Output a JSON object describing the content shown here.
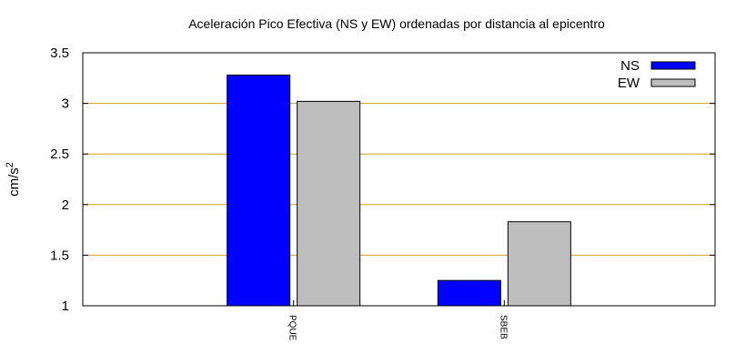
{
  "chart_data": {
    "type": "bar",
    "title": "Aceleración Pico Efectiva (NS y EW) ordenadas por distancia al epicentro",
    "ylabel_base": "cm/s",
    "ylabel_sup": "2",
    "categories": [
      "PQUE",
      "SBEB"
    ],
    "series": [
      {
        "name": "NS",
        "color": "#0000ff",
        "values": [
          3.28,
          1.25
        ]
      },
      {
        "name": "EW",
        "color": "#bebebe",
        "values": [
          3.02,
          1.83
        ]
      }
    ],
    "ylim": [
      1,
      3.5
    ],
    "yticks": [
      "1",
      "1.5",
      "2",
      "2.5",
      "3",
      "3.5"
    ],
    "grid": true,
    "grid_color": "#d4a017",
    "legend_position": "top-right"
  }
}
